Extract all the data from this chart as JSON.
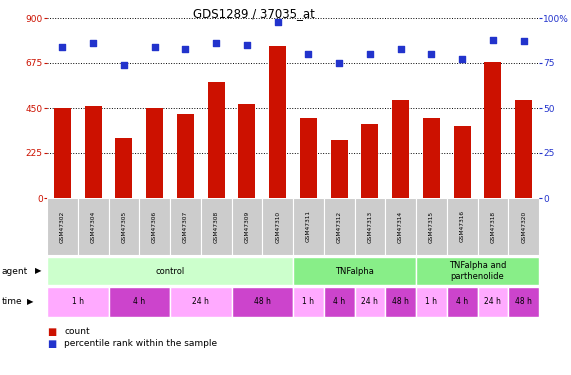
{
  "title": "GDS1289 / 37035_at",
  "samples": [
    "GSM47302",
    "GSM47304",
    "GSM47305",
    "GSM47306",
    "GSM47307",
    "GSM47308",
    "GSM47309",
    "GSM47310",
    "GSM47311",
    "GSM47312",
    "GSM47313",
    "GSM47314",
    "GSM47315",
    "GSM47316",
    "GSM47318",
    "GSM47320"
  ],
  "counts": [
    450,
    460,
    300,
    450,
    420,
    580,
    470,
    760,
    400,
    290,
    370,
    490,
    400,
    360,
    680,
    490
  ],
  "percentiles": [
    84,
    86,
    74,
    84,
    83,
    86,
    85,
    98,
    80,
    75,
    80,
    83,
    80,
    77,
    88,
    87
  ],
  "ylim_left": [
    0,
    900
  ],
  "ylim_right": [
    0,
    100
  ],
  "yticks_left": [
    0,
    225,
    450,
    675,
    900
  ],
  "yticks_right": [
    0,
    25,
    50,
    75,
    100
  ],
  "bar_color": "#cc1100",
  "dot_color": "#2233cc",
  "bg_color": "#ffffff",
  "agent_spans": [
    [
      0,
      8,
      "control"
    ],
    [
      8,
      12,
      "TNFalpha"
    ],
    [
      12,
      16,
      "TNFalpha and\nparthenolide"
    ]
  ],
  "agent_colors": [
    "#ccffcc",
    "#88ee88",
    "#88ee88"
  ],
  "time_groups": [
    {
      "label": "1 h",
      "start": 0,
      "end": 2
    },
    {
      "label": "4 h",
      "start": 2,
      "end": 4
    },
    {
      "label": "24 h",
      "start": 4,
      "end": 6
    },
    {
      "label": "48 h",
      "start": 6,
      "end": 8
    },
    {
      "label": "1 h",
      "start": 8,
      "end": 9
    },
    {
      "label": "4 h",
      "start": 9,
      "end": 10
    },
    {
      "label": "24 h",
      "start": 10,
      "end": 11
    },
    {
      "label": "48 h",
      "start": 11,
      "end": 12
    },
    {
      "label": "1 h",
      "start": 12,
      "end": 13
    },
    {
      "label": "4 h",
      "start": 13,
      "end": 14
    },
    {
      "label": "24 h",
      "start": 14,
      "end": 15
    },
    {
      "label": "48 h",
      "start": 15,
      "end": 16
    }
  ],
  "time_color_light": "#ffaaff",
  "time_color_dark": "#cc44cc",
  "sample_box_color": "#cccccc",
  "sample_text_color": "#333333"
}
